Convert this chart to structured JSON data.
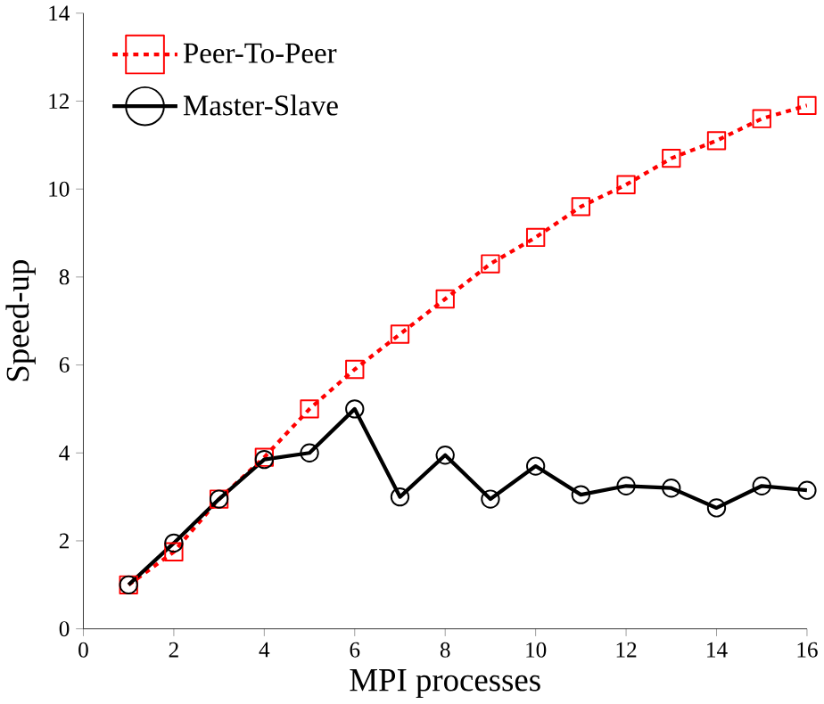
{
  "chart_data": {
    "type": "line",
    "xlabel": "MPI processes",
    "ylabel": "Speed-up",
    "x": [
      1,
      2,
      3,
      4,
      5,
      6,
      7,
      8,
      9,
      10,
      11,
      12,
      13,
      14,
      15,
      16
    ],
    "series": [
      {
        "name": "Peer-To-Peer",
        "color": "#ff0000",
        "marker": "square",
        "line_style": "dashed",
        "values": [
          1.0,
          1.75,
          2.95,
          3.9,
          5.0,
          5.9,
          6.7,
          7.5,
          8.3,
          8.9,
          9.6,
          10.1,
          10.7,
          11.1,
          11.6,
          11.9
        ]
      },
      {
        "name": "Master-Slave",
        "color": "#000000",
        "marker": "circle",
        "line_style": "solid",
        "values": [
          1.0,
          1.95,
          2.95,
          3.85,
          4.0,
          5.0,
          3.0,
          3.95,
          2.95,
          3.7,
          3.05,
          3.25,
          3.2,
          2.75,
          3.25,
          3.15
        ]
      }
    ],
    "xlim": [
      0,
      16
    ],
    "xticks": [
      0,
      2,
      4,
      6,
      8,
      10,
      12,
      14,
      16
    ],
    "ylim": [
      0,
      14
    ],
    "yticks": [
      0,
      2,
      4,
      6,
      8,
      10,
      12,
      14
    ],
    "grid": false,
    "legend": "top left"
  }
}
